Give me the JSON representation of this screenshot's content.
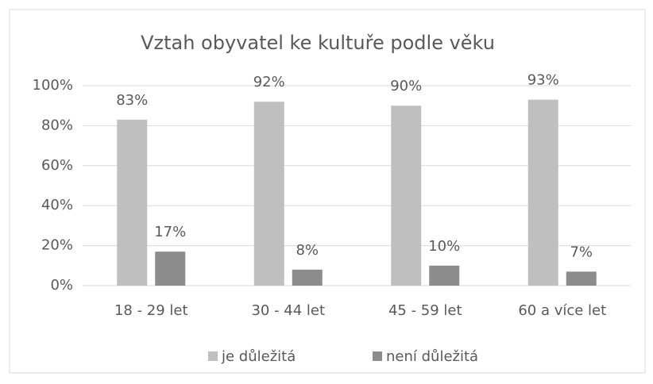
{
  "chart_data": {
    "type": "bar",
    "title": "Vztah obyvatel ke kultuře podle věku",
    "categories": [
      "18 - 29 let",
      "30 - 44 let",
      "45 - 59 let",
      "60 a více let"
    ],
    "series": [
      {
        "name": "je důležitá",
        "color": "#bfbfbf",
        "values": [
          83,
          92,
          90,
          93
        ],
        "value_labels": [
          "83%",
          "92%",
          "90%",
          "93%"
        ]
      },
      {
        "name": "není důležitá",
        "color": "#8c8c8c",
        "values": [
          17,
          8,
          10,
          7
        ],
        "value_labels": [
          "17%",
          "8%",
          "10%",
          "7%"
        ]
      }
    ],
    "ylim": [
      0,
      100
    ],
    "yticks": [
      {
        "value": 0,
        "label": "0%"
      },
      {
        "value": 20,
        "label": "20%"
      },
      {
        "value": 40,
        "label": "40%"
      },
      {
        "value": 60,
        "label": "60%"
      },
      {
        "value": 80,
        "label": "80%"
      },
      {
        "value": 100,
        "label": "100%"
      }
    ],
    "grid": true,
    "legend": "bottom"
  }
}
